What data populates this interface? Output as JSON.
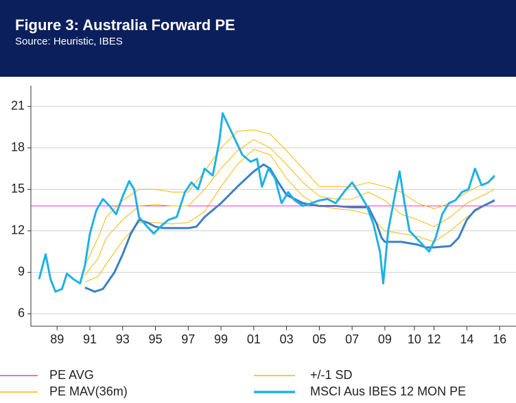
{
  "chart_data": {
    "type": "line",
    "title": "Figure 3: Australia Forward PE",
    "subtitle": "Source: Heuristic, IBES",
    "xlim": [
      1987.4,
      2017
    ],
    "xticks": [
      {
        "value": 1989,
        "label": "89"
      },
      {
        "value": 1991,
        "label": "91"
      },
      {
        "value": 1993,
        "label": "93"
      },
      {
        "value": 1995,
        "label": "95"
      },
      {
        "value": 1997,
        "label": "97"
      },
      {
        "value": 1999,
        "label": "99"
      },
      {
        "value": 2001,
        "label": "01"
      },
      {
        "value": 2003,
        "label": "03"
      },
      {
        "value": 2005,
        "label": "05"
      },
      {
        "value": 2007,
        "label": "07"
      },
      {
        "value": 2009,
        "label": "09"
      },
      {
        "value": 2010.8,
        "label": "10"
      },
      {
        "value": 2012,
        "label": "12"
      },
      {
        "value": 2014,
        "label": "14"
      },
      {
        "value": 2016,
        "label": "16"
      }
    ],
    "ylim": [
      5.1,
      22.5
    ],
    "yticks": [
      6,
      9,
      12,
      15,
      18,
      21
    ],
    "grid": true,
    "series": [
      {
        "name": "PE AVG",
        "color": "#e040c0",
        "width": 1,
        "x": [
          1987.4,
          2017
        ],
        "values": [
          13.8,
          13.8
        ]
      },
      {
        "name": "+/-1 SD",
        "color": "#f5b800",
        "width": 1,
        "x": [
          1990.7,
          1991.5,
          1992,
          1993,
          1994,
          1995,
          1996,
          1997,
          1998,
          1999,
          2000,
          2001,
          2002,
          2003,
          2004,
          2005,
          2006,
          2007,
          2008,
          2009,
          2010,
          2011,
          2012,
          2013,
          2014,
          2015.7
        ],
        "values": [
          9.5,
          11.5,
          13.0,
          14.2,
          15.0,
          15.0,
          14.8,
          14.8,
          16.3,
          18.0,
          19.2,
          19.3,
          19.0,
          17.8,
          16.5,
          15.2,
          15.2,
          15.2,
          15.5,
          15.2,
          14.8,
          14.0,
          13.6,
          14.0,
          14.8,
          15.8
        ]
      },
      {
        "name": "PE MAV(36m)",
        "color": "#f5b800",
        "width": 1,
        "x": [
          1990.7,
          1991.5,
          1992,
          1993,
          1994,
          1995,
          1996,
          1997,
          1998,
          1999,
          2000,
          2001,
          2002,
          2003,
          2004,
          2005,
          2006,
          2007,
          2008,
          2009,
          2010,
          2011,
          2012,
          2013,
          2014,
          2015.7
        ],
        "values": [
          8.8,
          10.0,
          11.5,
          12.8,
          13.8,
          13.9,
          13.8,
          13.8,
          15.0,
          16.5,
          17.8,
          18.6,
          18.0,
          16.8,
          15.5,
          14.5,
          14.3,
          14.3,
          14.8,
          14.2,
          13.2,
          12.8,
          12.3,
          13.0,
          14.0,
          15.0
        ]
      },
      {
        "name": "MSCI Aus IBES 12 MON PE",
        "color": "#1eb0e8",
        "width": 3,
        "x": [
          1987.9,
          1988.3,
          1988.6,
          1988.9,
          1989.3,
          1989.6,
          1990,
          1990.4,
          1990.7,
          1991,
          1991.4,
          1991.8,
          1992.2,
          1992.6,
          1993,
          1993.4,
          1993.7,
          1994,
          1994.5,
          1994.9,
          1995.3,
          1995.8,
          1996.3,
          1996.8,
          1997.2,
          1997.6,
          1998,
          1998.5,
          1998.9,
          1999.1,
          1999.5,
          1999.9,
          2000.3,
          2000.8,
          2001.2,
          2001.5,
          2001.9,
          2002.3,
          2002.7,
          2003.1,
          2003.5,
          2004,
          2004.5,
          2005,
          2005.5,
          2006,
          2006.5,
          2007,
          2007.4,
          2007.9,
          2008.3,
          2008.7,
          2008.9,
          2009.2,
          2009.6,
          2009.9,
          2010.2,
          2010.5,
          2010.9,
          2011.3,
          2011.7,
          2012.1,
          2012.5,
          2012.9,
          2013.3,
          2013.7,
          2014.1,
          2014.5,
          2014.9,
          2015.3,
          2015.7
        ],
        "values": [
          8.5,
          10.3,
          8.5,
          7.6,
          7.8,
          8.9,
          8.5,
          8.2,
          9.5,
          11.8,
          13.5,
          14.3,
          13.8,
          13.2,
          14.5,
          15.6,
          15.0,
          13.0,
          12.3,
          11.8,
          12.3,
          12.8,
          13.0,
          14.8,
          15.5,
          15.0,
          16.5,
          16.0,
          18.5,
          20.5,
          19.5,
          18.5,
          17.5,
          17.0,
          17.2,
          15.2,
          16.5,
          15.8,
          14.0,
          14.8,
          14.2,
          13.8,
          14.0,
          14.2,
          14.3,
          14.0,
          14.8,
          15.5,
          14.8,
          13.8,
          12.5,
          10.5,
          8.2,
          12.0,
          14.5,
          16.3,
          14.0,
          12.0,
          11.5,
          11.0,
          10.5,
          11.5,
          13.2,
          14.0,
          14.2,
          14.8,
          15.0,
          16.5,
          15.3,
          15.5,
          16.0
        ]
      },
      {
        "color": "#f5b800",
        "width": 1,
        "x": [
          1990.7,
          1991.5,
          1992,
          1993,
          1994,
          1995,
          1996,
          1997,
          1998,
          1999,
          2000,
          2001,
          2002,
          2003,
          2004,
          2005,
          2006,
          2007,
          2008,
          2009,
          2010,
          2011,
          2012,
          2013,
          2014,
          2015.7
        ],
        "values": [
          8.3,
          8.7,
          9.6,
          11.3,
          12.6,
          12.6,
          12.5,
          12.6,
          13.4,
          15.2,
          16.8,
          17.9,
          17.5,
          15.8,
          14.5,
          13.8,
          13.6,
          13.5,
          13.2,
          12.0,
          11.8,
          11.6,
          11.2,
          12.0,
          13.0,
          14.3
        ]
      },
      {
        "color": "#3a80c4",
        "width": 3,
        "x": [
          1990.7,
          1991.3,
          1991.8,
          1992.5,
          1993,
          1993.5,
          1994,
          1994.5,
          1995,
          1995.5,
          1996,
          1997,
          1997.5,
          1998,
          1999,
          2000,
          2001,
          2001.6,
          2002,
          2002.5,
          2003,
          2004,
          2005,
          2006,
          2007,
          2008,
          2008.5,
          2008.8,
          2009,
          2010,
          2011,
          2011.5,
          2012,
          2013,
          2013.5,
          2014,
          2014.5,
          2015,
          2015.7
        ],
        "values": [
          7.9,
          7.6,
          7.8,
          9.0,
          10.3,
          11.8,
          12.8,
          12.6,
          12.3,
          12.2,
          12.2,
          12.2,
          12.3,
          13.0,
          14.0,
          15.2,
          16.3,
          16.8,
          16.5,
          15.5,
          14.6,
          14.0,
          13.8,
          13.8,
          13.7,
          13.7,
          12.5,
          11.5,
          11.2,
          11.2,
          11.0,
          10.8,
          10.8,
          10.9,
          11.5,
          12.8,
          13.5,
          13.8,
          14.2
        ]
      }
    ]
  }
}
